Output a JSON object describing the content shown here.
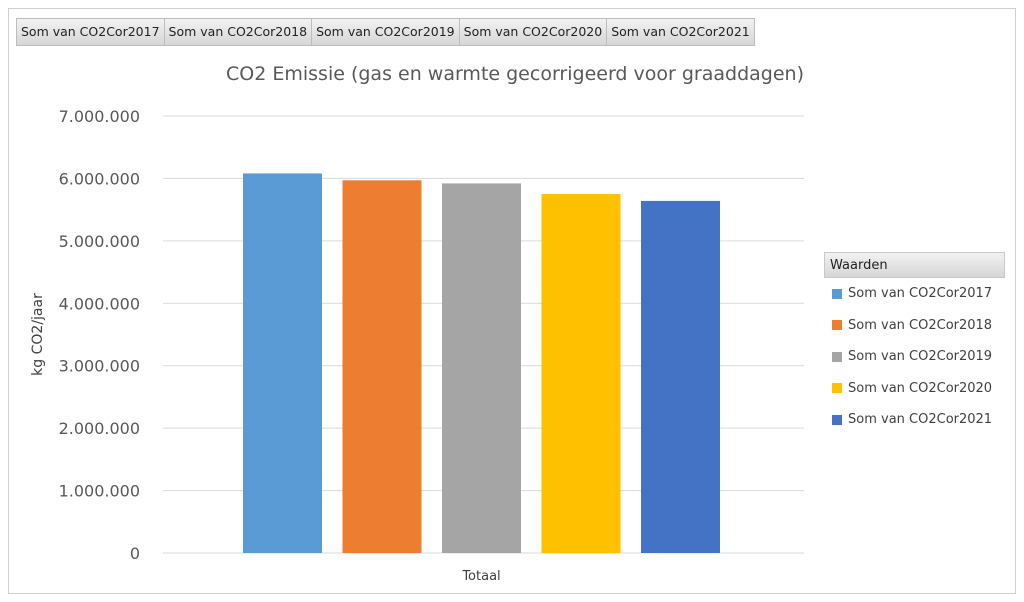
{
  "field_buttons": [
    {
      "label": "Som van CO2Cor2017"
    },
    {
      "label": "Som van CO2Cor2018"
    },
    {
      "label": "Som van CO2Cor2019"
    },
    {
      "label": "Som van CO2Cor2020"
    },
    {
      "label": "Som van CO2Cor2021"
    }
  ],
  "legend": {
    "header": "Waarden",
    "items": [
      {
        "label": "Som van CO2Cor2017",
        "color": "#5B9BD5"
      },
      {
        "label": "Som van CO2Cor2018",
        "color": "#ED7D31"
      },
      {
        "label": "Som van CO2Cor2019",
        "color": "#A5A5A5"
      },
      {
        "label": "Som van CO2Cor2020",
        "color": "#FFC000"
      },
      {
        "label": "Som van CO2Cor2021",
        "color": "#4472C4"
      }
    ]
  },
  "chart_data": {
    "type": "bar",
    "title": "CO2 Emissie (gas en warmte gecorrigeerd voor graaddagen)",
    "xlabel": "",
    "ylabel": "kg CO2/jaar",
    "categories": [
      "Totaal"
    ],
    "series": [
      {
        "name": "Som van CO2Cor2017",
        "values": [
          6080000
        ],
        "color": "#5B9BD5"
      },
      {
        "name": "Som van CO2Cor2018",
        "values": [
          5970000
        ],
        "color": "#ED7D31"
      },
      {
        "name": "Som van CO2Cor2019",
        "values": [
          5920000
        ],
        "color": "#A5A5A5"
      },
      {
        "name": "Som van CO2Cor2020",
        "values": [
          5750000
        ],
        "color": "#FFC000"
      },
      {
        "name": "Som van CO2Cor2021",
        "values": [
          5640000
        ],
        "color": "#4472C4"
      }
    ],
    "ylim": [
      0,
      7000000
    ],
    "yticks": [
      {
        "value": 0,
        "label": "0"
      },
      {
        "value": 1000000,
        "label": "1.000.000"
      },
      {
        "value": 2000000,
        "label": "2.000.000"
      },
      {
        "value": 3000000,
        "label": "3.000.000"
      },
      {
        "value": 4000000,
        "label": "4.000.000"
      },
      {
        "value": 5000000,
        "label": "5.000.000"
      },
      {
        "value": 6000000,
        "label": "6.000.000"
      },
      {
        "value": 7000000,
        "label": "7.000.000"
      }
    ],
    "grid": true,
    "legend_position": "right"
  }
}
